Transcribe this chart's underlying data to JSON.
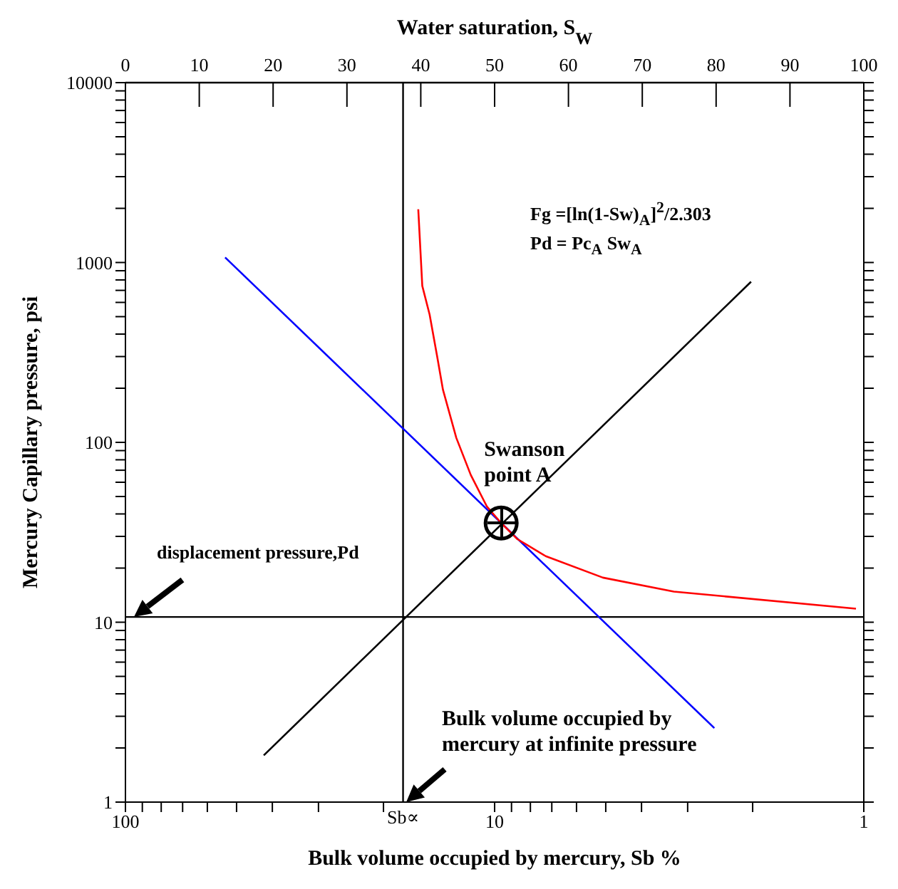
{
  "chart_data": {
    "type": "line",
    "xlabel": "Bulk volume occupied by mercury, Sb %",
    "x2label": "Water saturation, S$_{W}$",
    "ylabel": "Mercury Capillary pressure, psi",
    "log": "xy",
    "xlim": [
      100,
      1
    ],
    "xticks": [
      100,
      {
        "value": 90,
        "label": null
      },
      {
        "value": 80,
        "label": null
      },
      {
        "value": 70,
        "label": null
      },
      {
        "value": 60,
        "label": null
      },
      {
        "value": 50,
        "label": null
      },
      {
        "value": 40,
        "label": null
      },
      {
        "value": 30,
        "label": null
      },
      {
        "value": 20,
        "label": null
      },
      10,
      {
        "value": 9,
        "label": null
      },
      {
        "value": 8,
        "label": null
      },
      {
        "value": 7,
        "label": null
      },
      {
        "value": 6,
        "label": null
      },
      {
        "value": 5,
        "label": null
      },
      {
        "value": 4,
        "label": null
      },
      {
        "value": 3,
        "label": null
      },
      {
        "value": 2,
        "label": null
      },
      1
    ],
    "x2lim": [
      0,
      100
    ],
    "x2ticks": [
      0,
      10,
      20,
      30,
      40,
      50,
      60,
      70,
      80,
      90,
      100
    ],
    "ylim": [
      1,
      10000
    ],
    "yticks": [
      1,
      {
        "value": 2,
        "label": null
      },
      {
        "value": 3,
        "label": null
      },
      {
        "value": 4,
        "label": null
      },
      {
        "value": 5,
        "label": null
      },
      {
        "value": 6,
        "label": null
      },
      {
        "value": 7,
        "label": null
      },
      {
        "value": 8,
        "label": null
      },
      {
        "value": 9,
        "label": null
      },
      10,
      {
        "value": 20,
        "label": null
      },
      {
        "value": 30,
        "label": null
      },
      {
        "value": 40,
        "label": null
      },
      {
        "value": 50,
        "label": null
      },
      {
        "value": 60,
        "label": null
      },
      {
        "value": 70,
        "label": null
      },
      {
        "value": 80,
        "label": null
      },
      {
        "value": 90,
        "label": null
      },
      100,
      {
        "value": 200,
        "label": null
      },
      {
        "value": 300,
        "label": null
      },
      {
        "value": 400,
        "label": null
      },
      {
        "value": 500,
        "label": null
      },
      {
        "value": 600,
        "label": null
      },
      {
        "value": 700,
        "label": null
      },
      {
        "value": 800,
        "label": null
      },
      {
        "value": 900,
        "label": null
      },
      1000,
      {
        "value": 2000,
        "label": null
      },
      {
        "value": 3000,
        "label": null
      },
      {
        "value": 4000,
        "label": null
      },
      {
        "value": 5000,
        "label": null
      },
      {
        "value": 6000,
        "label": null
      },
      {
        "value": 7000,
        "label": null
      },
      {
        "value": 8000,
        "label": null
      },
      {
        "value": 9000,
        "label": null
      },
      10000
    ],
    "grid": false,
    "legend": false,
    "marker": "none",
    "line_style": "solid",
    "series": [
      {
        "color": "#0000ff",
        "x": [
          53.7,
          2.54
        ],
        "values": [
          1067,
          2.58
        ]
      },
      {
        "color": "#000000",
        "x": [
          42.2,
          2.02
        ],
        "values": [
          1.82,
          782
        ]
      },
      {
        "color": "#ff0000",
        "x": [
          16.1,
          15.7,
          15.0,
          14.3,
          13.8,
          12.7,
          11.6,
          10.5,
          9.6,
          8.68,
          7.27,
          5.09,
          3.27,
          1.05
        ],
        "values": [
          1978,
          741,
          514,
          298,
          196,
          106,
          65.8,
          44.1,
          35.6,
          29.0,
          23.3,
          17.7,
          14.8,
          11.9
        ]
      },
      {
        "type": "scatter",
        "marker": "circle",
        "color": "#000000",
        "x": [
          9.6
        ],
        "values": [
          35.6
        ]
      }
    ],
    "ref_lines": [
      {
        "axis": "x",
        "value": 17.7,
        "label": "Sb∝",
        "color": "#000000"
      },
      {
        "axis": "y",
        "value": 10.7,
        "color": "#000000"
      }
    ],
    "annotations": [
      "Fg =[ln(1-Sw)$_{A}$]$^{2}$/2.303",
      "Pd = Pc$_{A}$ Sw$_{A}$",
      {
        "text": "Swanson point A",
        "x": 9.6,
        "y": 35.6
      },
      "displacement pressure,Pd",
      "Bulk volume occupied by mercury at infinite pressure"
    ]
  }
}
